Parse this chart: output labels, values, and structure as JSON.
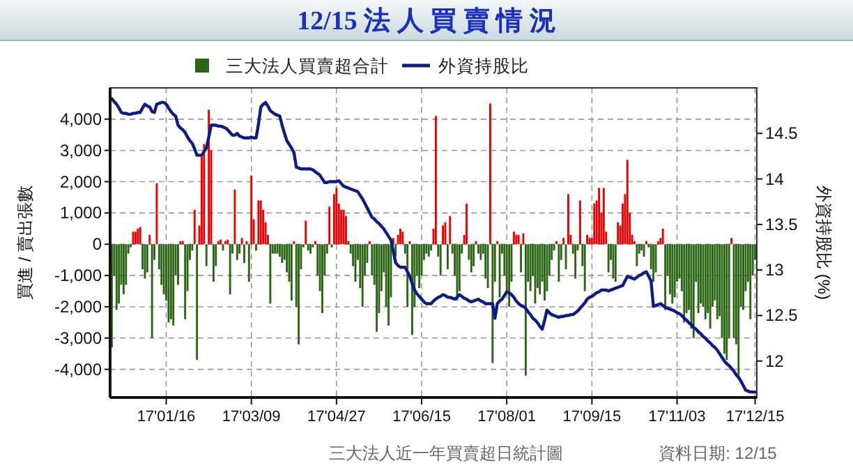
{
  "chart_data": {
    "type": "bar",
    "title": "12/15 法 人 買 賣 情 況",
    "ylabel": "買進 / 賣出張數",
    "y2label": "外資持股比 (%)",
    "categories": [
      null,
      null,
      null,
      null,
      null,
      null,
      null,
      null,
      null,
      null,
      null,
      null,
      null,
      null,
      null,
      null,
      null,
      null,
      null,
      null,
      null,
      null,
      null,
      "17'01/16",
      null,
      null,
      null,
      null,
      null,
      null,
      null,
      null,
      null,
      null,
      null,
      null,
      null,
      null,
      null,
      null,
      null,
      null,
      null,
      null,
      null,
      null,
      null,
      null,
      null,
      null,
      null,
      null,
      null,
      null,
      null,
      null,
      null,
      null,
      null,
      "17'03/09",
      null,
      null,
      null,
      null,
      null,
      null,
      null,
      null,
      null,
      null,
      null,
      null,
      null,
      null,
      null,
      null,
      null,
      null,
      null,
      null,
      null,
      null,
      null,
      null,
      null,
      null,
      null,
      null,
      null,
      null,
      null,
      null,
      null,
      null,
      null,
      "17'04/27",
      null,
      null,
      null,
      null,
      null,
      null,
      null,
      null,
      null,
      null,
      null,
      null,
      null,
      null,
      null,
      null,
      null,
      null,
      null,
      null,
      null,
      null,
      null,
      null,
      null,
      null,
      null,
      null,
      null,
      null,
      null,
      null,
      null,
      null,
      null,
      "17'06/15",
      null,
      null,
      null,
      null,
      null,
      null,
      null,
      null,
      null,
      null,
      null,
      null,
      null,
      null,
      null,
      null,
      null,
      null,
      null,
      null,
      null,
      null,
      null,
      null,
      null,
      null,
      null,
      null,
      null,
      null,
      null,
      null,
      null,
      null,
      null,
      "17'08/01",
      null,
      null,
      null,
      null,
      null,
      null,
      null,
      null,
      null,
      null,
      null,
      null,
      null,
      null,
      null,
      null,
      null,
      null,
      null,
      null,
      null,
      null,
      null,
      null,
      null,
      null,
      null,
      null,
      null,
      null,
      null,
      null,
      null,
      null,
      null,
      "17'09/15",
      null,
      null,
      null,
      null,
      null,
      null,
      null,
      null,
      null,
      null,
      null,
      null,
      null,
      null,
      null,
      null,
      null,
      null,
      null,
      null,
      null,
      null,
      null,
      null,
      null,
      null,
      null,
      null,
      null,
      null,
      null,
      null,
      null,
      null,
      null,
      "17'11/03",
      null,
      null,
      null,
      null,
      null,
      null,
      null,
      null,
      null,
      null,
      null,
      null,
      null,
      null,
      null,
      null,
      null,
      null,
      null,
      null,
      null,
      null,
      null,
      null,
      null,
      null,
      null,
      null,
      null,
      null,
      null,
      null,
      "17'12/15"
    ],
    "series": [
      {
        "name": "三大法人買賣超合計",
        "color": "#2b6614",
        "values": [
          -3300,
          -1000,
          -2100,
          -1900,
          -1300,
          -1600,
          -1300,
          -300,
          -100,
          400,
          400,
          500,
          550,
          -800,
          -1100,
          -900,
          300,
          -3000,
          -500,
          1950,
          -800,
          -1300,
          -1600,
          -1800,
          -2500,
          -2400,
          -2600,
          -1000,
          -1300,
          100,
          100,
          -2400,
          -1500,
          -500,
          -200,
          1100,
          -3700,
          600,
          2800,
          3200,
          -700,
          4300,
          3000,
          -1200,
          -700,
          100,
          150,
          -200,
          100,
          150,
          -1600,
          -300,
          1750,
          -500,
          -300,
          200,
          -600,
          100,
          -1200,
          2200,
          800,
          -200,
          1400,
          1400,
          1100,
          700,
          300,
          -1900,
          -300,
          -300,
          -300,
          -400,
          -600,
          -500,
          -900,
          -1200,
          -1800,
          100,
          -2000,
          -3200,
          -800,
          -100,
          750,
          -200,
          -300,
          -100,
          100,
          -1000,
          -1500,
          -2200,
          -1000,
          -300,
          1200,
          -100,
          1600,
          1800,
          1300,
          1100,
          1100,
          900,
          100,
          -300,
          -700,
          -1200,
          -500,
          -1400,
          -2000,
          -1000,
          -600,
          100,
          -1000,
          -1300,
          -2800,
          -2200,
          -1500,
          -900,
          -2000,
          -2600,
          -1700,
          200,
          -400,
          300,
          500,
          400,
          -300,
          -2000,
          100,
          -2900,
          -2000,
          -1000,
          -1400,
          -1000,
          -500,
          -300,
          -400,
          -200,
          500,
          4100,
          -400,
          -1000,
          600,
          700,
          -800,
          900,
          -300,
          -1000,
          -1800,
          -1500,
          -300,
          300,
          1300,
          -500,
          -900,
          -700,
          100,
          -300,
          -500,
          -300,
          -1100,
          -1400,
          4500,
          -3800,
          -1200,
          100,
          -1700,
          -300,
          -1000,
          -1500,
          -2000,
          -1200,
          400,
          300,
          300,
          -900,
          350,
          -4200,
          -1200,
          -1500,
          -1000,
          -1900,
          -1400,
          -1600,
          -1200,
          -1800,
          -1500,
          -1000,
          -500,
          -200,
          100,
          -1200,
          -500,
          200,
          -800,
          1600,
          300,
          -300,
          -1100,
          -200,
          1400,
          -700,
          -1500,
          300,
          200,
          200,
          1300,
          1400,
          1800,
          1000,
          1800,
          400,
          -900,
          -500,
          -1100,
          -1200,
          700,
          600,
          1300,
          1600,
          2700,
          1000,
          300,
          100,
          -700,
          -300,
          -200,
          -400,
          100,
          -100,
          -800,
          -1200,
          -900,
          100,
          200,
          500,
          -2100,
          -1000,
          -1600,
          -1900,
          -1700,
          -1200,
          -1100,
          -1500,
          -2500,
          -2200,
          -2100,
          -2700,
          -3000,
          -1200,
          -2200,
          -1900,
          -2000,
          -2400,
          -2200,
          -2700,
          -2000,
          -1800,
          -2400,
          -2300,
          -3000,
          -3500,
          -3700,
          -3000,
          200,
          -3000,
          -3200,
          -4200,
          -2000,
          -2100,
          -1500,
          -1200,
          -2400,
          -1000,
          -500
        ],
        "colors": [
          "#2b6614",
          "#2b6614",
          "#2b6614",
          "#2b6614",
          "#2b6614",
          "#2b6614",
          "#2b6614",
          "#2b6614",
          "#2b6614",
          "#ee0000",
          "#ee0000",
          "#ee0000",
          "#ee0000",
          "#2b6614",
          "#2b6614",
          "#2b6614",
          "#ee0000",
          "#2b6614",
          "#2b6614",
          "#ee0000",
          "#2b6614",
          "#2b6614",
          "#2b6614",
          "#2b6614",
          "#2b6614",
          "#2b6614",
          "#2b6614",
          "#2b6614",
          "#2b6614",
          "#ee0000",
          "#ee0000",
          "#2b6614",
          "#2b6614",
          "#2b6614",
          "#2b6614",
          "#ee0000",
          "#2b6614",
          "#ee0000",
          "#ee0000",
          "#ee0000",
          "#2b6614",
          "#ee0000",
          "#ee0000",
          "#2b6614",
          "#2b6614",
          "#ee0000",
          "#ee0000",
          "#2b6614",
          "#ee0000",
          "#ee0000",
          "#2b6614",
          "#2b6614",
          "#ee0000",
          "#2b6614",
          "#2b6614",
          "#ee0000",
          "#2b6614",
          "#ee0000",
          "#2b6614",
          "#ee0000",
          "#ee0000",
          "#2b6614",
          "#ee0000",
          "#ee0000",
          "#ee0000",
          "#ee0000",
          "#ee0000",
          "#2b6614",
          "#2b6614",
          "#2b6614",
          "#2b6614",
          "#2b6614",
          "#2b6614",
          "#2b6614",
          "#2b6614",
          "#2b6614",
          "#2b6614",
          "#ee0000",
          "#2b6614",
          "#2b6614",
          "#2b6614",
          "#2b6614",
          "#ee0000",
          "#2b6614",
          "#2b6614",
          "#2b6614",
          "#ee0000",
          "#2b6614",
          "#2b6614",
          "#2b6614",
          "#2b6614",
          "#2b6614",
          "#ee0000",
          "#2b6614",
          "#ee0000",
          "#ee0000",
          "#ee0000",
          "#ee0000",
          "#ee0000",
          "#ee0000",
          "#ee0000",
          "#2b6614",
          "#2b6614",
          "#2b6614",
          "#2b6614",
          "#2b6614",
          "#2b6614",
          "#2b6614",
          "#2b6614",
          "#ee0000",
          "#2b6614",
          "#2b6614",
          "#2b6614",
          "#2b6614",
          "#2b6614",
          "#2b6614",
          "#2b6614",
          "#2b6614",
          "#2b6614",
          "#ee0000",
          "#2b6614",
          "#ee0000",
          "#ee0000",
          "#ee0000",
          "#2b6614",
          "#2b6614",
          "#ee0000",
          "#2b6614",
          "#2b6614",
          "#2b6614",
          "#2b6614",
          "#2b6614",
          "#2b6614",
          "#2b6614",
          "#2b6614",
          "#2b6614",
          "#ee0000",
          "#ee0000",
          "#2b6614",
          "#2b6614",
          "#ee0000",
          "#ee0000",
          "#2b6614",
          "#ee0000",
          "#2b6614",
          "#2b6614",
          "#2b6614",
          "#2b6614",
          "#2b6614",
          "#ee0000",
          "#ee0000",
          "#2b6614",
          "#2b6614",
          "#2b6614",
          "#ee0000",
          "#2b6614",
          "#2b6614",
          "#2b6614",
          "#2b6614",
          "#2b6614",
          "#ee0000",
          "#2b6614",
          "#2b6614",
          "#ee0000",
          "#2b6614",
          "#2b6614",
          "#2b6614",
          "#2b6614",
          "#2b6614",
          "#2b6614",
          "#ee0000",
          "#ee0000",
          "#ee0000",
          "#2b6614",
          "#ee0000",
          "#2b6614",
          "#2b6614",
          "#2b6614",
          "#2b6614",
          "#2b6614",
          "#2b6614",
          "#2b6614",
          "#2b6614",
          "#2b6614",
          "#2b6614",
          "#2b6614",
          "#2b6614",
          "#2b6614",
          "#ee0000",
          "#2b6614",
          "#2b6614",
          "#ee0000",
          "#2b6614",
          "#ee0000",
          "#ee0000",
          "#2b6614",
          "#2b6614",
          "#2b6614",
          "#ee0000",
          "#2b6614",
          "#2b6614",
          "#ee0000",
          "#ee0000",
          "#ee0000",
          "#ee0000",
          "#ee0000",
          "#ee0000",
          "#ee0000",
          "#ee0000",
          "#ee0000",
          "#2b6614",
          "#2b6614",
          "#2b6614",
          "#2b6614",
          "#ee0000",
          "#ee0000",
          "#ee0000",
          "#ee0000",
          "#ee0000",
          "#ee0000",
          "#ee0000",
          "#ee0000",
          "#2b6614",
          "#2b6614",
          "#2b6614",
          "#2b6614",
          "#ee0000",
          "#2b6614",
          "#2b6614",
          "#2b6614",
          "#2b6614",
          "#ee0000",
          "#ee0000",
          "#ee0000",
          "#2b6614",
          "#2b6614",
          "#2b6614",
          "#2b6614",
          "#2b6614",
          "#2b6614",
          "#2b6614",
          "#2b6614",
          "#2b6614",
          "#2b6614",
          "#2b6614",
          "#2b6614",
          "#2b6614",
          "#2b6614",
          "#2b6614",
          "#2b6614",
          "#2b6614",
          "#2b6614",
          "#2b6614",
          "#2b6614",
          "#2b6614",
          "#2b6614",
          "#2b6614",
          "#2b6614",
          "#2b6614",
          "#2b6614",
          "#2b6614",
          "#2b6614",
          "#ee0000",
          "#2b6614",
          "#2b6614",
          "#2b6614",
          "#2b6614",
          "#2b6614",
          "#2b6614",
          "#2b6614",
          "#2b6614",
          "#2b6614",
          "#2b6614"
        ]
      },
      {
        "name": "外資持股比",
        "type": "line",
        "axis": "y2",
        "color": "#0d1a8a",
        "values": [
          14.88,
          14.85,
          14.82,
          14.78,
          14.73,
          14.72,
          14.72,
          14.71,
          14.71,
          14.72,
          14.72,
          14.73,
          14.73,
          14.78,
          14.82,
          14.8,
          14.79,
          14.74,
          14.73,
          14.82,
          14.83,
          14.84,
          14.84,
          14.82,
          14.78,
          14.74,
          14.71,
          14.69,
          14.59,
          14.56,
          14.54,
          14.51,
          14.46,
          14.42,
          14.39,
          14.33,
          14.26,
          14.26,
          14.26,
          14.3,
          14.34,
          14.46,
          14.59,
          14.59,
          14.59,
          14.58,
          14.58,
          14.57,
          14.56,
          14.54,
          14.51,
          14.48,
          14.48,
          14.5,
          14.47,
          14.46,
          14.45,
          14.45,
          14.45,
          14.46,
          14.45,
          14.45,
          14.6,
          14.79,
          14.82,
          14.84,
          14.8,
          14.75,
          14.73,
          14.71,
          14.7,
          14.69,
          14.59,
          14.5,
          14.42,
          14.38,
          14.34,
          14.29,
          14.13,
          14.12,
          14.11,
          14.11,
          14.11,
          14.11,
          14.11,
          14.1,
          14.08,
          14.06,
          14.04,
          14.0,
          13.96,
          13.96,
          13.97,
          13.97,
          13.97,
          13.97,
          13.98,
          13.95,
          13.92,
          13.91,
          13.9,
          13.89,
          13.88,
          13.87,
          13.86,
          13.82,
          13.78,
          13.73,
          13.68,
          13.63,
          13.58,
          13.56,
          13.53,
          13.51,
          13.48,
          13.45,
          13.41,
          13.37,
          13.33,
          13.21,
          13.08,
          13.05,
          13.03,
          13.03,
          13.03,
          12.98,
          12.93,
          12.85,
          12.78,
          12.74,
          12.71,
          12.68,
          12.65,
          12.63,
          12.63,
          12.63,
          12.66,
          12.68,
          12.7,
          12.71,
          12.73,
          12.72,
          12.7,
          12.7,
          12.69,
          12.68,
          12.7,
          12.73,
          12.71,
          12.69,
          12.68,
          12.66,
          12.65,
          12.66,
          12.67,
          12.68,
          12.66,
          12.65,
          12.63,
          12.63,
          12.63,
          12.63,
          12.47,
          12.63,
          12.66,
          12.68,
          12.72,
          12.76,
          12.75,
          12.73,
          12.7,
          12.66,
          12.63,
          12.61,
          12.6,
          12.58,
          12.54,
          12.51,
          12.47,
          12.45,
          12.42,
          12.38,
          12.35,
          12.45,
          12.56,
          12.53,
          12.51,
          12.5,
          12.49,
          12.48,
          12.49,
          12.49,
          12.5,
          12.5,
          12.51,
          12.51,
          12.53,
          12.55,
          12.58,
          12.61,
          12.64,
          12.68,
          12.7,
          12.71,
          12.73,
          12.75,
          12.76,
          12.78,
          12.78,
          12.78,
          12.77,
          12.78,
          12.79,
          12.8,
          12.81,
          12.82,
          12.83,
          12.88,
          12.93,
          12.92,
          12.91,
          12.9,
          12.92,
          12.94,
          12.95,
          12.97,
          12.98,
          12.93,
          12.88,
          12.6,
          12.61,
          12.62,
          12.63,
          12.61,
          12.59,
          12.58,
          12.57,
          12.56,
          12.55,
          12.53,
          12.52,
          12.5,
          12.47,
          12.45,
          12.42,
          12.4,
          12.37,
          12.35,
          12.32,
          12.3,
          12.27,
          12.25,
          12.22,
          12.2,
          12.17,
          12.15,
          12.12,
          12.08,
          12.04,
          12.0,
          11.97,
          11.95,
          11.92,
          11.89,
          11.85,
          11.82,
          11.78,
          11.73,
          11.68,
          11.67,
          11.66,
          11.66,
          11.66
        ]
      }
    ],
    "ylim": [
      -4900,
      5000
    ],
    "yticks": [
      {
        "value": -4000,
        "label": "-4,000"
      },
      {
        "value": -3000,
        "label": "-3,000"
      },
      {
        "value": -2000,
        "label": "-2,000"
      },
      {
        "value": -1000,
        "label": "-1,000"
      },
      0,
      {
        "value": 1000,
        "label": "1,000"
      },
      {
        "value": 2000,
        "label": "2,000"
      },
      {
        "value": 3000,
        "label": "3,000"
      },
      {
        "value": 4000,
        "label": "4,000"
      }
    ],
    "y2lim": [
      11.6,
      15
    ],
    "y2ticks": [
      12,
      12.5,
      13,
      13.5,
      14,
      14.5
    ],
    "grid": true,
    "legend": "top",
    "line_style": "solid",
    "marker": "none",
    "annotations": [
      "三大法人近一年買賣超日統計圖",
      "資料日期: 12/15"
    ]
  }
}
